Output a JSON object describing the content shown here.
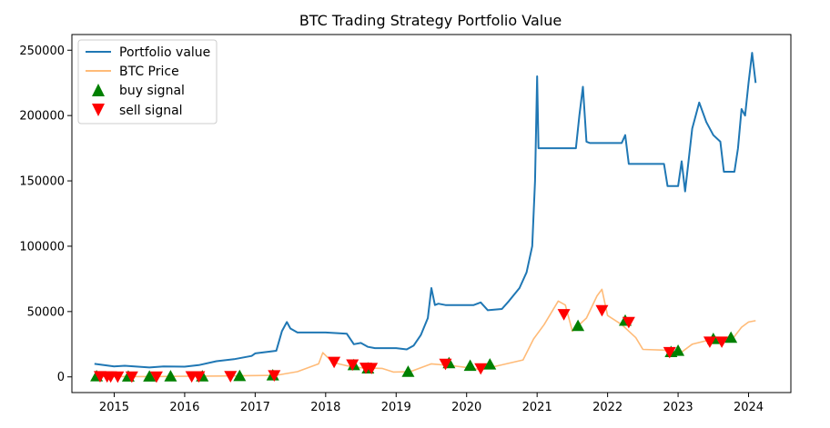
{
  "chart_data": {
    "type": "line",
    "title": "BTC Trading Strategy Portfolio Value",
    "xlabel": "",
    "ylabel": "",
    "xlim": [
      2014.4,
      2024.6
    ],
    "ylim": [
      -12000,
      262000
    ],
    "x_ticks": [
      2015,
      2016,
      2017,
      2018,
      2019,
      2020,
      2021,
      2022,
      2023,
      2024
    ],
    "x_tick_labels": [
      "2015",
      "2016",
      "2017",
      "2018",
      "2019",
      "2020",
      "2021",
      "2022",
      "2023",
      "2024"
    ],
    "y_ticks": [
      0,
      50000,
      100000,
      150000,
      200000,
      250000
    ],
    "y_tick_labels": [
      "0",
      "50000",
      "100000",
      "150000",
      "200000",
      "250000"
    ],
    "grid": false,
    "legend_position": "top-left",
    "series": [
      {
        "name": "Portfolio value",
        "color": "#1f77b4",
        "x": [
          2014.72,
          2015.0,
          2015.15,
          2015.5,
          2015.7,
          2016.0,
          2016.2,
          2016.45,
          2016.7,
          2016.95,
          2017.0,
          2017.3,
          2017.38,
          2017.45,
          2017.5,
          2017.6,
          2018.0,
          2018.3,
          2018.4,
          2018.5,
          2018.6,
          2018.7,
          2019.0,
          2019.15,
          2019.25,
          2019.35,
          2019.45,
          2019.5,
          2019.55,
          2019.6,
          2019.7,
          2019.8,
          2020.1,
          2020.2,
          2020.3,
          2020.5,
          2020.6,
          2020.75,
          2020.85,
          2020.93,
          2020.97,
          2021.0,
          2021.02,
          2021.05,
          2021.1,
          2021.4,
          2021.55,
          2021.6,
          2021.65,
          2021.7,
          2021.75,
          2022.0,
          2022.2,
          2022.25,
          2022.3,
          2022.8,
          2022.85,
          2023.0,
          2023.05,
          2023.1,
          2023.2,
          2023.3,
          2023.4,
          2023.5,
          2023.6,
          2023.65,
          2023.8,
          2023.85,
          2023.9,
          2023.95,
          2024.0,
          2024.05,
          2024.1
        ],
        "y": [
          10000,
          8000,
          8500,
          7200,
          8000,
          7800,
          9000,
          12000,
          13500,
          16000,
          18000,
          20000,
          35000,
          42000,
          37000,
          34000,
          34000,
          33000,
          25000,
          26000,
          23000,
          22000,
          22000,
          21000,
          24000,
          32000,
          45000,
          68000,
          55000,
          56000,
          55000,
          55000,
          55000,
          57000,
          51000,
          52000,
          58000,
          68000,
          80000,
          100000,
          150000,
          230000,
          175000,
          175000,
          175000,
          175000,
          175000,
          200000,
          222000,
          180000,
          179000,
          179000,
          179000,
          185000,
          163000,
          163000,
          146000,
          146000,
          165000,
          142000,
          190000,
          210000,
          195000,
          185000,
          180000,
          157000,
          157000,
          175000,
          205000,
          200000,
          225000,
          248000,
          225000
        ]
      },
      {
        "name": "BTC Price",
        "color": "#ffbb78",
        "x": [
          2014.72,
          2015.0,
          2015.5,
          2016.0,
          2016.5,
          2017.0,
          2017.3,
          2017.6,
          2017.9,
          2017.96,
          2018.1,
          2018.3,
          2018.5,
          2018.8,
          2018.96,
          2019.2,
          2019.5,
          2019.8,
          2020.0,
          2020.2,
          2020.5,
          2020.8,
          2020.95,
          2021.1,
          2021.3,
          2021.4,
          2021.5,
          2021.7,
          2021.85,
          2021.92,
          2022.0,
          2022.2,
          2022.4,
          2022.5,
          2022.8,
          2023.0,
          2023.2,
          2023.5,
          2023.75,
          2023.9,
          2024.0,
          2024.1
        ],
        "y": [
          400,
          300,
          250,
          430,
          650,
          1000,
          1200,
          4000,
          10000,
          18500,
          11000,
          8500,
          7000,
          6500,
          3700,
          4000,
          10000,
          8500,
          7200,
          5500,
          9200,
          13000,
          29000,
          40000,
          58000,
          55000,
          35000,
          45000,
          62000,
          67000,
          47000,
          40000,
          30000,
          21000,
          20500,
          17000,
          25000,
          29000,
          27500,
          38000,
          42000,
          43000
        ]
      }
    ],
    "buy_signals": {
      "name": "buy signal",
      "color": "#008000",
      "x": [
        2014.75,
        2015.2,
        2015.5,
        2015.8,
        2016.25,
        2016.78,
        2017.25,
        2018.4,
        2018.6,
        2019.17,
        2019.75,
        2020.05,
        2020.33,
        2021.58,
        2022.25,
        2022.9,
        2023.0,
        2023.5,
        2023.75
      ],
      "y": [
        500,
        300,
        300,
        400,
        450,
        650,
        1200,
        9000,
        6500,
        3900,
        10500,
        8500,
        9500,
        39000,
        43000,
        19000,
        20000,
        29000,
        30000
      ]
    },
    "sell_signals": {
      "name": "sell signal",
      "color": "#ff0000",
      "x": [
        2014.8,
        2014.9,
        2014.95,
        2015.05,
        2015.25,
        2015.6,
        2016.1,
        2016.2,
        2016.65,
        2017.27,
        2018.12,
        2018.38,
        2018.57,
        2018.65,
        2019.7,
        2020.2,
        2021.38,
        2021.92,
        2022.3,
        2022.88,
        2023.45,
        2023.62
      ],
      "y": [
        500,
        400,
        350,
        300,
        280,
        250,
        420,
        430,
        600,
        1200,
        11500,
        9500,
        7000,
        6800,
        10000,
        6500,
        48000,
        51000,
        42000,
        19000,
        27000,
        27000
      ]
    }
  }
}
